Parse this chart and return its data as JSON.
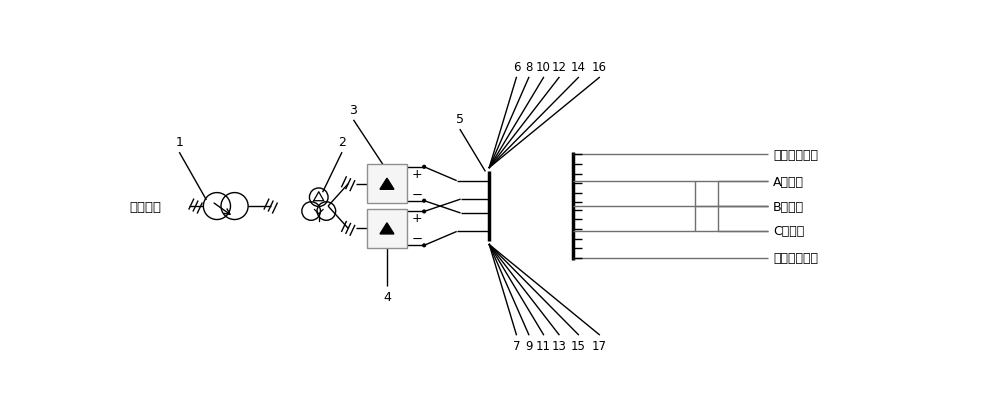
{
  "bg_color": "#ffffff",
  "source_label": "三相电源",
  "legend_labels": [
    "第一绍缘地线",
    "A相导线",
    "B相导线",
    "C相导线",
    "第二绍缘地线"
  ],
  "nums_top": [
    "6",
    "8",
    "10",
    "12",
    "14",
    "16"
  ],
  "nums_bot": [
    "7",
    "9",
    "11",
    "13",
    "15",
    "17"
  ]
}
